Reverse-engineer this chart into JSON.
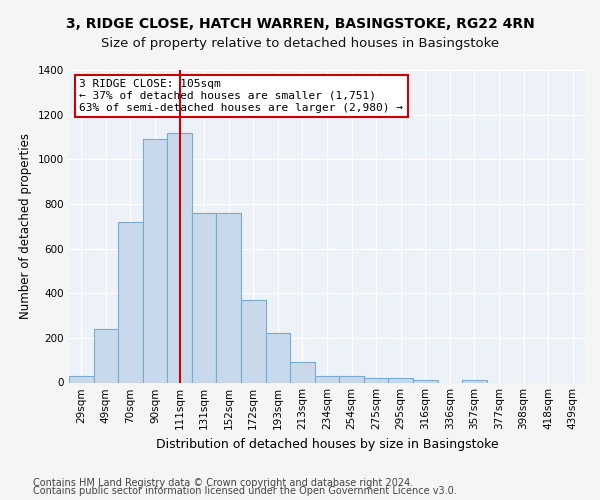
{
  "title_line1": "3, RIDGE CLOSE, HATCH WARREN, BASINGSTOKE, RG22 4RN",
  "title_line2": "Size of property relative to detached houses in Basingstoke",
  "xlabel": "Distribution of detached houses by size in Basingstoke",
  "ylabel": "Number of detached properties",
  "categories": [
    "29sqm",
    "49sqm",
    "70sqm",
    "90sqm",
    "111sqm",
    "131sqm",
    "152sqm",
    "172sqm",
    "193sqm",
    "213sqm",
    "234sqm",
    "254sqm",
    "275sqm",
    "295sqm",
    "316sqm",
    "336sqm",
    "357sqm",
    "377sqm",
    "398sqm",
    "418sqm",
    "439sqm"
  ],
  "values": [
    29,
    240,
    720,
    1090,
    1120,
    760,
    760,
    370,
    220,
    90,
    30,
    28,
    20,
    20,
    12,
    0,
    12,
    0,
    0,
    0,
    0
  ],
  "bar_color": "#c9d9ec",
  "bar_edge_color": "#7aaad0",
  "vline_color": "#cc0000",
  "vline_pos": 4.5,
  "annotation_text": "3 RIDGE CLOSE: 105sqm\n← 37% of detached houses are smaller (1,751)\n63% of semi-detached houses are larger (2,980) →",
  "annotation_box_color": "#ffffff",
  "annotation_box_edge": "#cc0000",
  "ylim": [
    0,
    1400
  ],
  "yticks": [
    0,
    200,
    400,
    600,
    800,
    1000,
    1200,
    1400
  ],
  "footer_line1": "Contains HM Land Registry data © Crown copyright and database right 2024.",
  "footer_line2": "Contains public sector information licensed under the Open Government Licence v3.0.",
  "bg_color": "#edf1f8",
  "grid_color": "#ffffff",
  "fig_bg_color": "#f5f5f5",
  "title_fontsize": 10,
  "subtitle_fontsize": 9.5,
  "tick_fontsize": 7.5,
  "ylabel_fontsize": 8.5,
  "xlabel_fontsize": 9,
  "annotation_fontsize": 8,
  "footer_fontsize": 7
}
